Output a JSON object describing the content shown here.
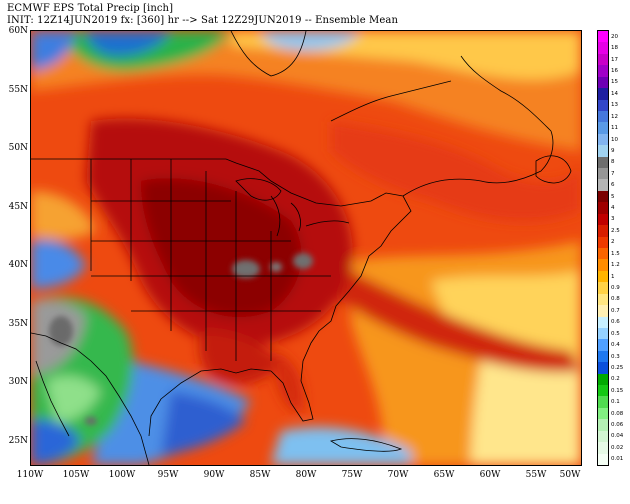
{
  "header": {
    "title": "ECMWF EPS Total Precip [inch]",
    "subtitle": "INIT: 12Z14JUN2019 fx: [360] hr --> Sat 12Z29JUN2019 -- Ensemble Mean"
  },
  "map": {
    "region": "North America / Western Atlantic",
    "lat_labels": [
      "60N",
      "55N",
      "50N",
      "45N",
      "40N",
      "35N",
      "30N",
      "25N"
    ],
    "lon_labels": [
      "110W",
      "105W",
      "100W",
      "95W",
      "90W",
      "85W",
      "80W",
      "75W",
      "70W",
      "65W",
      "60W",
      "55W",
      "50W"
    ]
  },
  "colorbar": {
    "levels": [
      "20",
      "18",
      "17",
      "16",
      "15",
      "14",
      "13",
      "12",
      "11",
      "10",
      "9",
      "8",
      "7",
      "6",
      "5",
      "4",
      "3",
      "2.5",
      "2",
      "1.5",
      "1.2",
      "1",
      "0.9",
      "0.8",
      "0.7",
      "0.6",
      "0.5",
      "0.4",
      "0.3",
      "0.25",
      "0.2",
      "0.15",
      "0.1",
      "0.08",
      "0.06",
      "0.04",
      "0.02",
      "0.01"
    ],
    "colors": [
      "#ff00ff",
      "#e600e6",
      "#c800c8",
      "#a000c8",
      "#6e00b4",
      "#1e1ea0",
      "#3246c8",
      "#4678dc",
      "#5a9ae6",
      "#82b4f0",
      "#a0d2f0",
      "#6e6e6e",
      "#969696",
      "#b4b4b4",
      "#7a0000",
      "#9e0000",
      "#c00000",
      "#d81e00",
      "#ee3a00",
      "#fa6400",
      "#ff8c00",
      "#ffb400",
      "#ffd246",
      "#ffe682",
      "#fff0b4",
      "#c8f0ff",
      "#96d2ff",
      "#50a0ff",
      "#1e78f0",
      "#0a50dc",
      "#00aa00",
      "#14c814",
      "#50dc50",
      "#82f082",
      "#b4f0b4",
      "#d2f5d2",
      "#e6fae6",
      "#f5fff5"
    ]
  }
}
